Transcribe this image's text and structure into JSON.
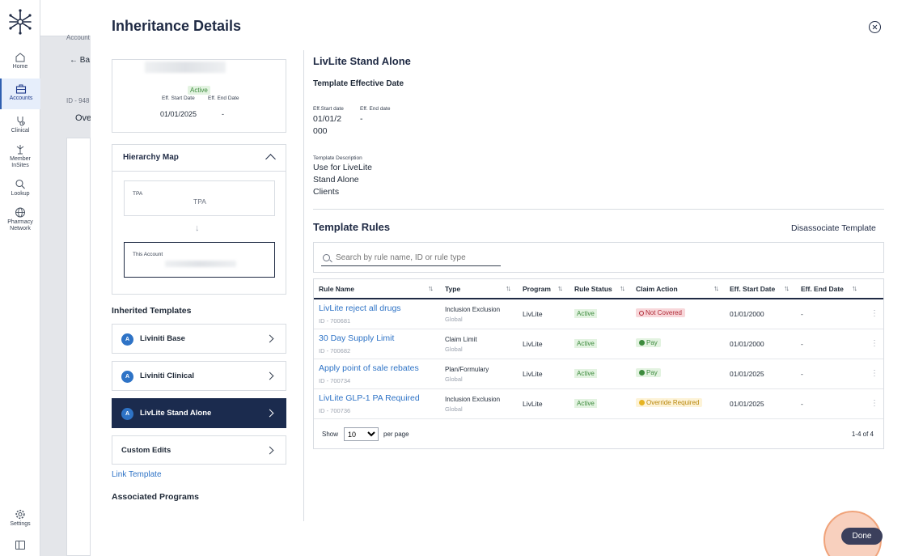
{
  "sidebar": {
    "items": [
      {
        "label": "Home",
        "icon": "home-icon"
      },
      {
        "label": "Accounts",
        "icon": "briefcase-icon"
      },
      {
        "label": "Clinical",
        "icon": "stethoscope-icon"
      },
      {
        "label": "Member InSites",
        "icon": "member-insites-icon"
      },
      {
        "label": "Lookup",
        "icon": "search-icon"
      },
      {
        "label": "Pharmacy Network",
        "icon": "globe-icon"
      },
      {
        "label": "Settings",
        "icon": "gear-icon"
      }
    ]
  },
  "background": {
    "breadcrumb": "Account",
    "back": "Ba",
    "id_prefix": "ID - 948",
    "tab": "Ove"
  },
  "modal": {
    "title": "Inheritance Details",
    "account_card": {
      "status": "Active",
      "eff_start_label": "Eff. Start Date",
      "eff_end_label": "Eff. End Date",
      "eff_start": "01/01/2025",
      "eff_end": "-"
    },
    "hierarchy": {
      "title": "Hierarchy Map",
      "tpa_label": "TPA",
      "tpa_value": "TPA",
      "this_label": "This Account"
    },
    "inherited_title": "Inherited Templates",
    "templates": [
      {
        "avatar": "A",
        "name": "Liviniti Base"
      },
      {
        "avatar": "A",
        "name": "Liviniti Clinical"
      },
      {
        "avatar": "A",
        "name": "LivLite Stand Alone"
      }
    ],
    "custom_edits": "Custom Edits",
    "link_template": "Link Template",
    "associated_programs": "Associated Programs",
    "done": "Done"
  },
  "detail": {
    "title": "LivLite Stand Alone",
    "effective_title": "Template Effective Date",
    "eff_start_label": "Eff.Start date",
    "eff_end_label": "Eff. End date",
    "eff_start_line1": "01/01/2",
    "eff_start_line2": "000",
    "eff_end": "-",
    "desc_label": "Template Description",
    "desc_line1": "Use for LiveLite",
    "desc_line2": "Stand Alone",
    "desc_line3": "Clients",
    "rules_title": "Template Rules",
    "disassociate": "Disassociate Template",
    "search_placeholder": "Search by rule name, ID or rule type"
  },
  "table": {
    "headers": [
      "Rule Name",
      "Type",
      "Program",
      "Rule Status",
      "Claim Action",
      "Eff. Start Date",
      "Eff. End Date"
    ],
    "sort_glyph": "↑↓",
    "rows": [
      {
        "name": "LivLite reject all drugs",
        "id": "ID - 700681",
        "type": "Inclusion Exclusion",
        "scope": "Global",
        "program": "LivLite",
        "status": "Active",
        "action": "Not Covered",
        "eff_start": "01/01/2000",
        "eff_end": "-"
      },
      {
        "name": "30 Day Supply Limit",
        "id": "ID - 700682",
        "type": "Claim Limit",
        "scope": "Global",
        "program": "LivLite",
        "status": "Active",
        "action": "Pay",
        "eff_start": "01/01/2000",
        "eff_end": "-"
      },
      {
        "name": "Apply point of sale rebates",
        "id": "ID - 700734",
        "type": "Plan/Formulary",
        "scope": "Global",
        "program": "LivLite",
        "status": "Active",
        "action": "Pay",
        "eff_start": "01/01/2025",
        "eff_end": "-"
      },
      {
        "name": "LivLite GLP-1 PA Required",
        "id": "ID - 700736",
        "type": "Inclusion Exclusion",
        "scope": "Global",
        "program": "LivLite",
        "status": "Active",
        "action": "Override Required",
        "eff_start": "01/01/2025",
        "eff_end": "-"
      }
    ],
    "show_label": "Show",
    "per_page_value": "10",
    "per_page_label": "per page",
    "range": "1-4 of 4",
    "kebab": "⋮"
  },
  "colors": {
    "accent": "#2e73c6",
    "navy": "#1b2b4e",
    "active_green": "#3d8b3d",
    "not_covered_red": "#b02a37",
    "override_amber": "#b8860b"
  }
}
